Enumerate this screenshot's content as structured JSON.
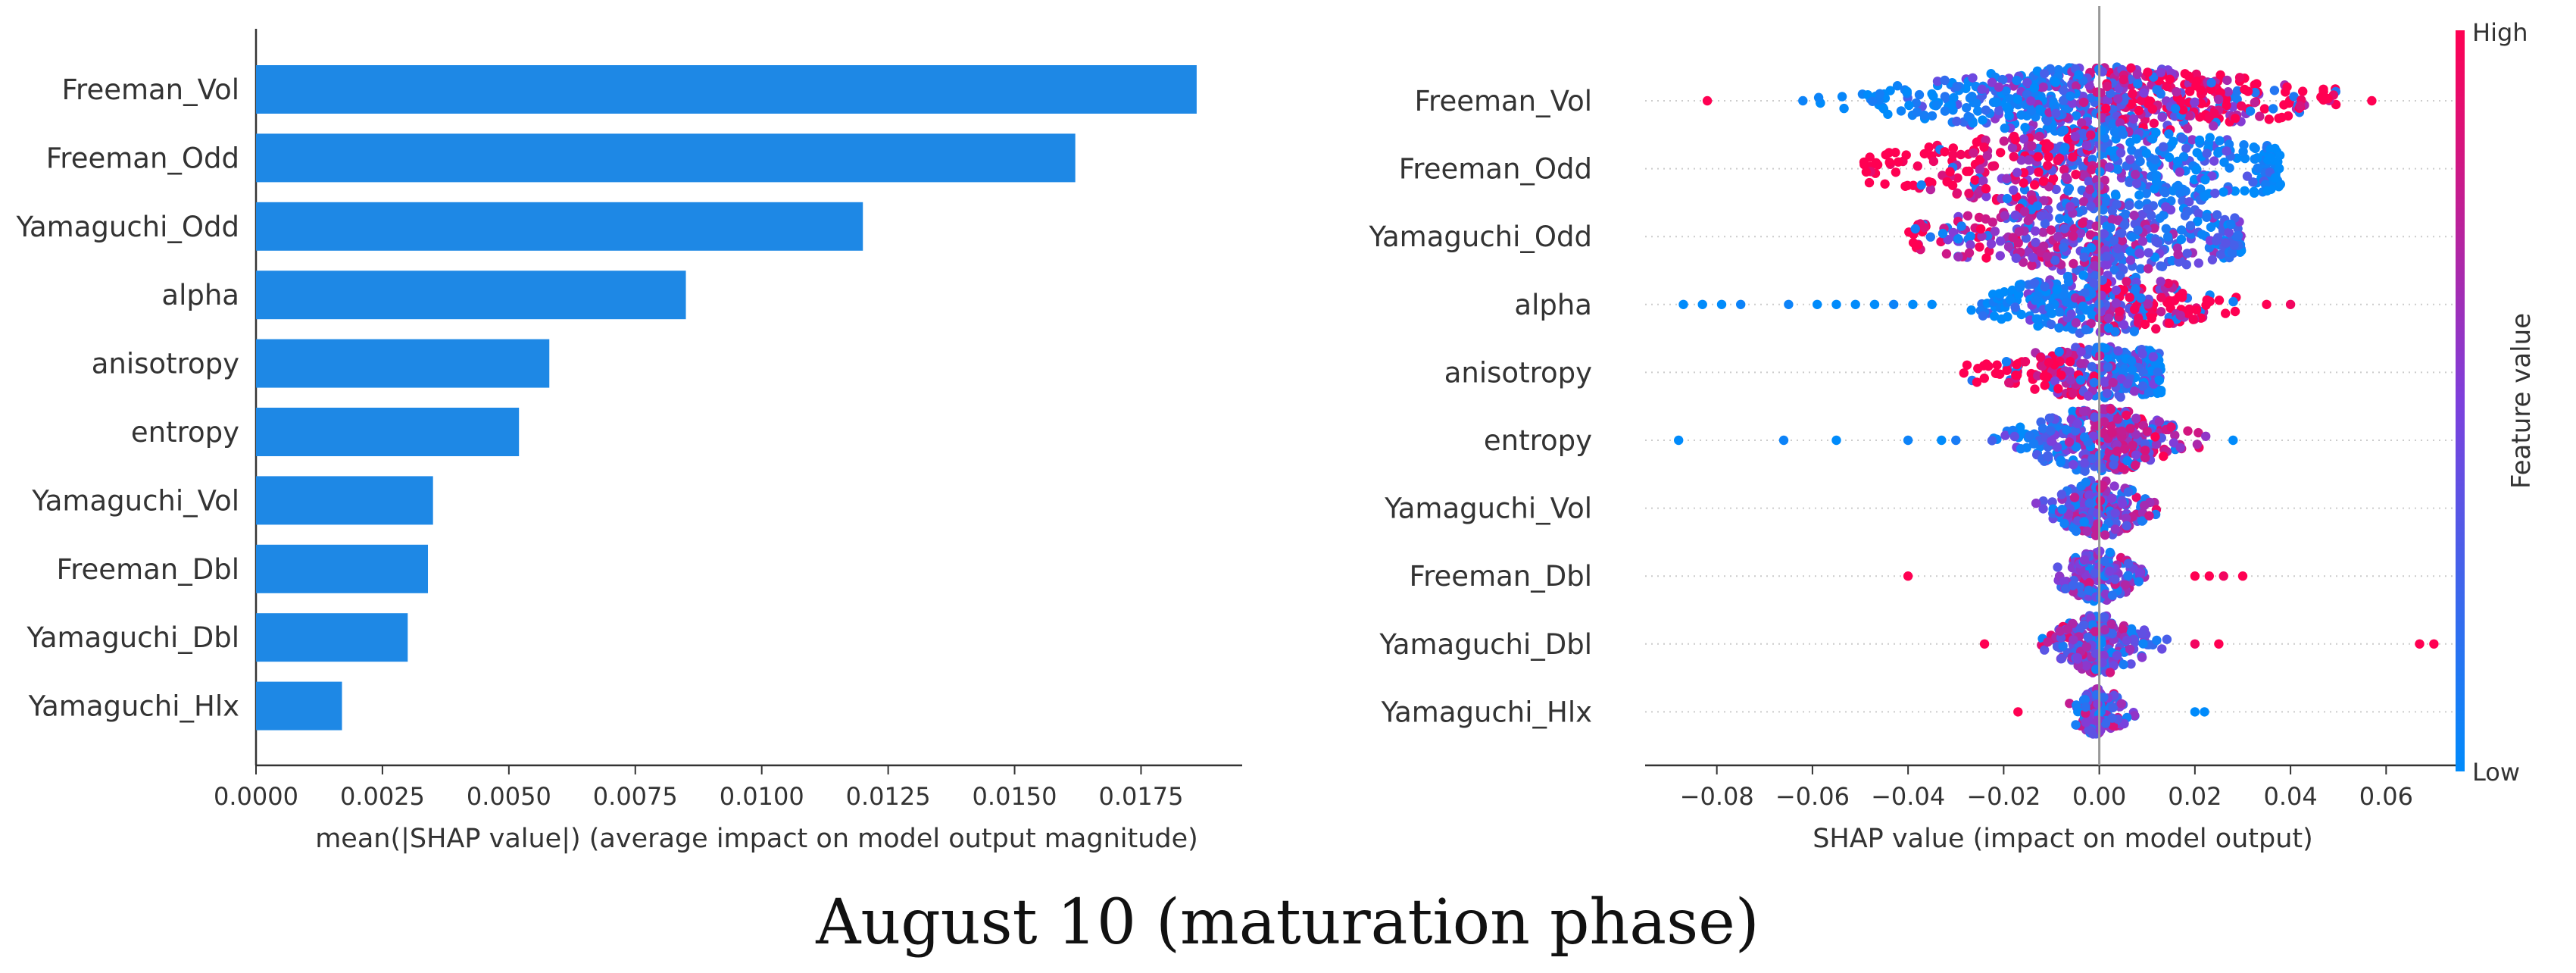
{
  "figure": {
    "caption": "August 10 (maturation phase)"
  },
  "colors": {
    "bar": "#1e88e5",
    "low": "#008bfb",
    "high": "#ff0052",
    "axis": "#333333",
    "grid": "#cccccc"
  },
  "chart_data": [
    {
      "type": "bar",
      "orientation": "horizontal",
      "title": "",
      "categories": [
        "Freeman_Vol",
        "Freeman_Odd",
        "Yamaguchi_Odd",
        "alpha",
        "anisotropy",
        "entropy",
        "Yamaguchi_Vol",
        "Freeman_Dbl",
        "Yamaguchi_Dbl",
        "Yamaguchi_Hlx"
      ],
      "values": [
        0.0186,
        0.0162,
        0.012,
        0.0085,
        0.0058,
        0.0052,
        0.0035,
        0.0034,
        0.003,
        0.0017
      ],
      "xlabel": "mean(|SHAP value|) (average impact on model output magnitude)",
      "ylabel": "",
      "xlim": [
        0.0,
        0.0195
      ],
      "xticks": [
        0.0,
        0.0025,
        0.005,
        0.0075,
        0.01,
        0.0125,
        0.015,
        0.0175
      ],
      "xtick_labels": [
        "0.0000",
        "0.0025",
        "0.0050",
        "0.0075",
        "0.0100",
        "0.0125",
        "0.0150",
        "0.0175"
      ]
    },
    {
      "type": "scatter",
      "subtype": "beeswarm",
      "title": "",
      "categories": [
        "Freeman_Vol",
        "Freeman_Odd",
        "Yamaguchi_Odd",
        "alpha",
        "anisotropy",
        "entropy",
        "Yamaguchi_Vol",
        "Freeman_Dbl",
        "Yamaguchi_Dbl",
        "Yamaguchi_Hlx"
      ],
      "xlabel": "SHAP value (impact on model output)",
      "xlim": [
        -0.095,
        0.075
      ],
      "xticks": [
        -0.08,
        -0.06,
        -0.04,
        -0.02,
        0.0,
        0.02,
        0.04,
        0.06
      ],
      "xtick_labels": [
        "−0.08",
        "−0.06",
        "−0.04",
        "−0.02",
        "0.00",
        "0.02",
        "0.04",
        "0.06"
      ],
      "colorbar": {
        "label": "Feature value",
        "high": "High",
        "low": "Low"
      },
      "features": [
        {
          "name": "Freeman_Vol",
          "range": [
            -0.06,
            0.05
          ],
          "spread": 0.022,
          "halfwidth": 0.5,
          "count": 620,
          "trend": 1,
          "outliers": [
            [
              -0.082,
              1.0
            ],
            [
              0.057,
              1.0
            ],
            [
              -0.062,
              0.05
            ]
          ]
        },
        {
          "name": "Freeman_Odd",
          "range": [
            -0.05,
            0.038
          ],
          "spread": 0.022,
          "halfwidth": 0.58,
          "count": 520,
          "trend": -1,
          "outliers": []
        },
        {
          "name": "Yamaguchi_Odd",
          "range": [
            -0.04,
            0.03
          ],
          "spread": 0.018,
          "halfwidth": 0.52,
          "count": 430,
          "trend": -0.5,
          "outliers": []
        },
        {
          "name": "alpha",
          "range": [
            -0.03,
            0.03
          ],
          "spread": 0.012,
          "halfwidth": 0.44,
          "count": 320,
          "trend": 1,
          "outliers": [
            [
              -0.087,
              0.0
            ],
            [
              -0.083,
              0.0
            ],
            [
              -0.079,
              0.0
            ],
            [
              -0.075,
              0.05
            ],
            [
              -0.065,
              0.05
            ],
            [
              -0.059,
              0.0
            ],
            [
              -0.055,
              0.0
            ],
            [
              -0.051,
              0.0
            ],
            [
              -0.047,
              0.0
            ],
            [
              -0.043,
              0.05
            ],
            [
              -0.039,
              0.0
            ],
            [
              -0.035,
              0.0
            ],
            [
              0.035,
              1.0
            ],
            [
              0.04,
              0.95
            ]
          ]
        },
        {
          "name": "anisotropy",
          "range": [
            -0.03,
            0.013
          ],
          "spread": 0.012,
          "halfwidth": 0.38,
          "count": 300,
          "trend": -1,
          "outliers": []
        },
        {
          "name": "entropy",
          "range": [
            -0.024,
            0.028
          ],
          "spread": 0.008,
          "halfwidth": 0.48,
          "count": 340,
          "trend": 0.6,
          "outliers": [
            [
              -0.088,
              0.0
            ],
            [
              -0.066,
              0.05
            ],
            [
              -0.055,
              0.0
            ],
            [
              -0.04,
              0.05
            ],
            [
              -0.033,
              0.0
            ],
            [
              -0.03,
              0.1
            ],
            [
              0.028,
              0.0
            ]
          ]
        },
        {
          "name": "Yamaguchi_Vol",
          "range": [
            -0.015,
            0.012
          ],
          "spread": 0.005,
          "halfwidth": 0.42,
          "count": 200,
          "trend": 0.3,
          "outliers": []
        },
        {
          "name": "Freeman_Dbl",
          "range": [
            -0.02,
            0.014
          ],
          "spread": 0.004,
          "halfwidth": 0.38,
          "count": 170,
          "trend": 0,
          "outliers": [
            [
              -0.04,
              1.0
            ],
            [
              0.02,
              1.0
            ],
            [
              0.023,
              1.0
            ],
            [
              0.026,
              0.95
            ],
            [
              0.03,
              1.0
            ]
          ]
        },
        {
          "name": "Yamaguchi_Dbl",
          "range": [
            -0.015,
            0.016
          ],
          "spread": 0.005,
          "halfwidth": 0.44,
          "count": 220,
          "trend": -0.3,
          "outliers": [
            [
              -0.024,
              1.0
            ],
            [
              0.02,
              0.95
            ],
            [
              0.025,
              1.0
            ],
            [
              0.067,
              1.0
            ],
            [
              0.07,
              1.0
            ]
          ]
        },
        {
          "name": "Yamaguchi_Hlx",
          "range": [
            -0.017,
            0.012
          ],
          "spread": 0.003,
          "halfwidth": 0.34,
          "count": 130,
          "trend": 0,
          "outliers": [
            [
              -0.017,
              1.0
            ],
            [
              0.02,
              0.0
            ],
            [
              0.022,
              0.0
            ]
          ]
        }
      ]
    }
  ]
}
